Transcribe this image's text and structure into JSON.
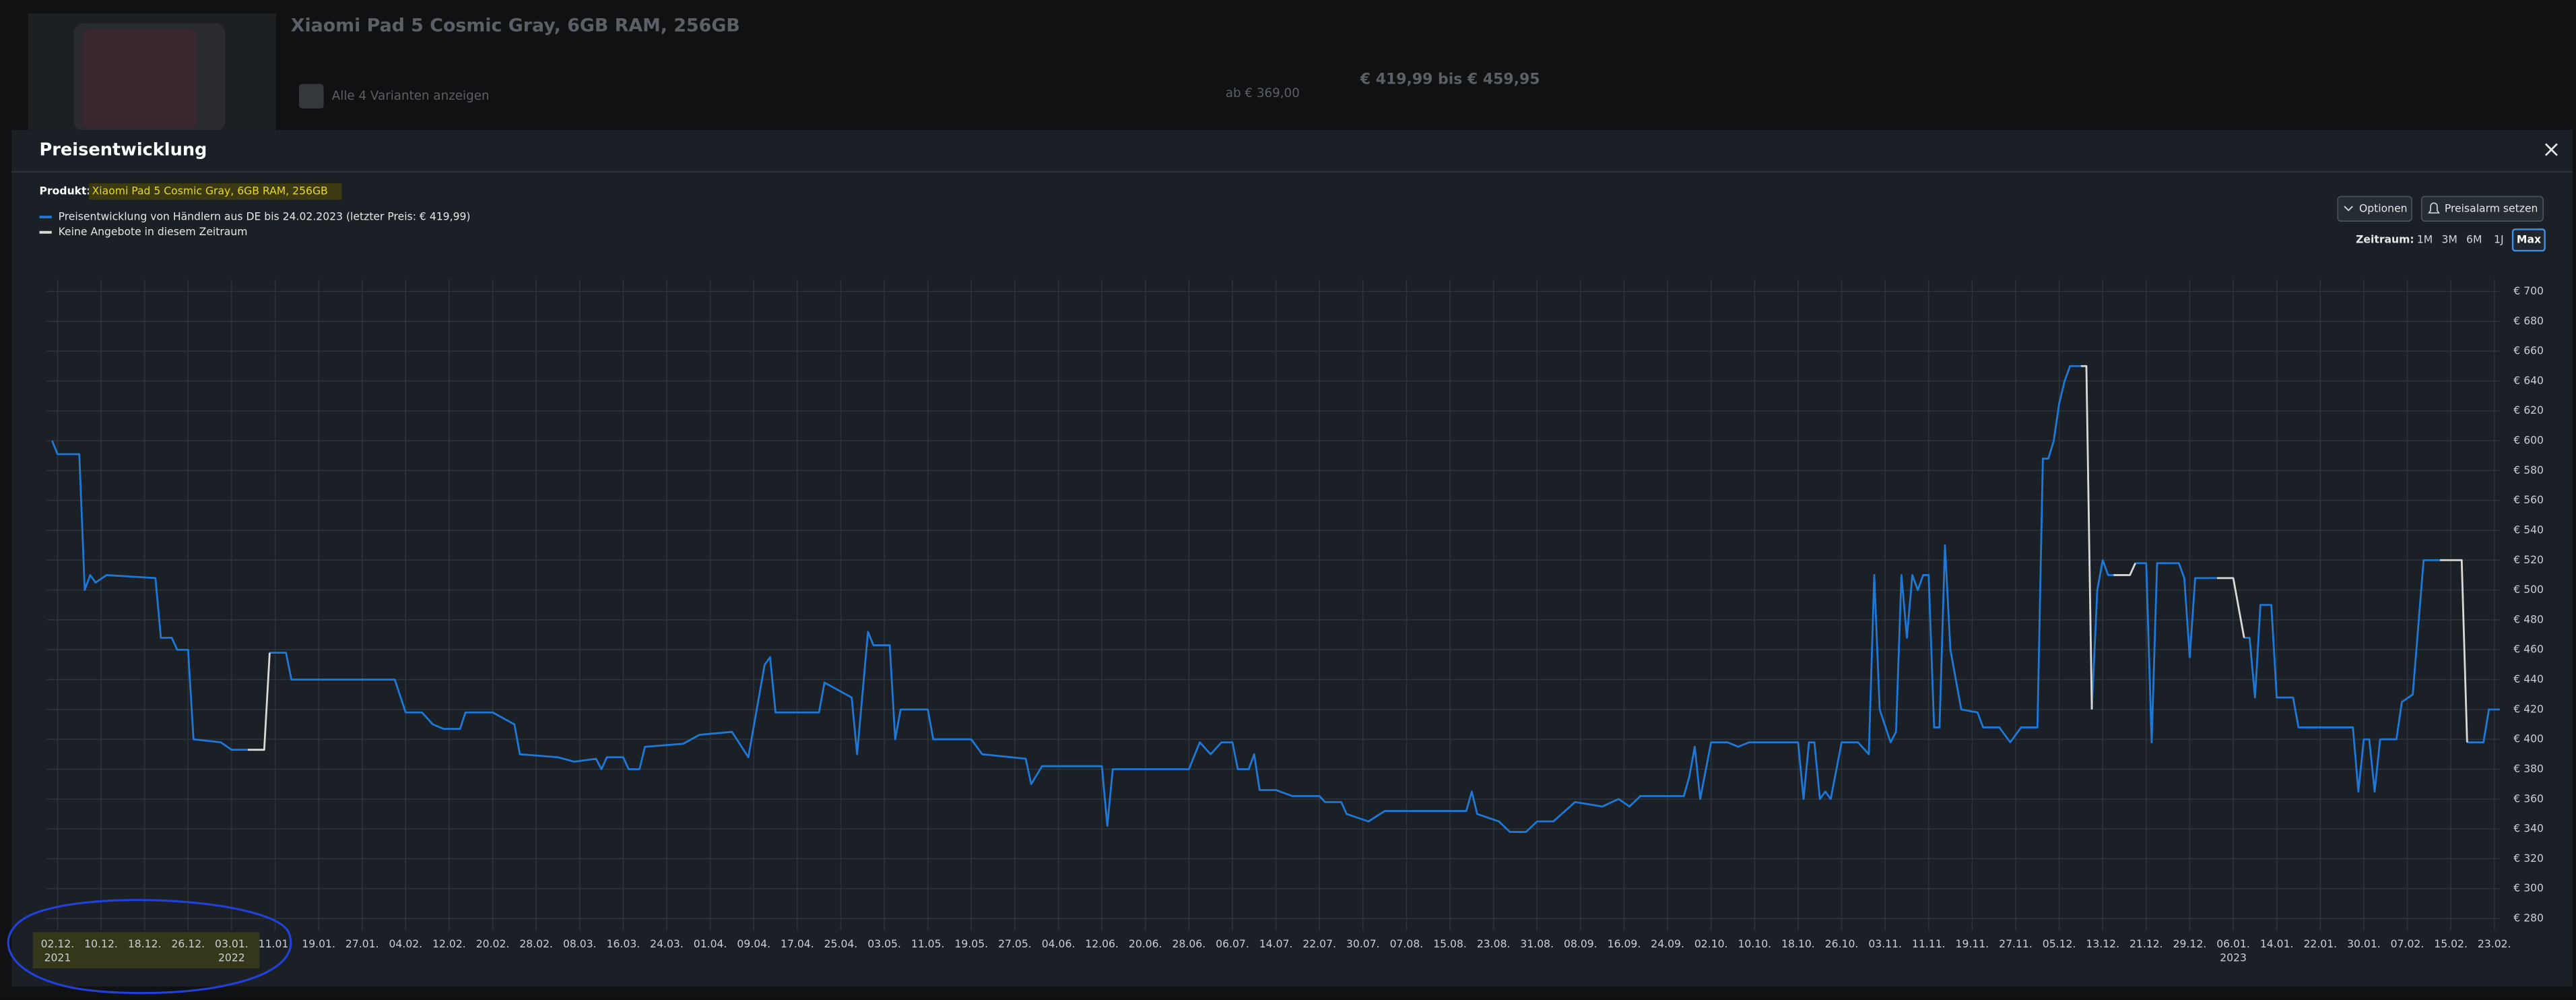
{
  "background_page": {
    "product_title": "Xiaomi Pad 5 Cosmic Gray, 6GB RAM, 256GB",
    "variants_link": "Alle 4 Varianten anzeigen",
    "price_from": "ab € 369,00",
    "price_range": "€ 419,99 bis € 459,95"
  },
  "modal": {
    "title": "Preisentwicklung",
    "product_label": "Produkt:",
    "product_name": "Xiaomi Pad 5 Cosmic Gray, 6GB RAM, 256GB",
    "options_button": "Optionen",
    "alarm_button": "Preisalarm setzen",
    "range_label": "Zeitraum:",
    "range_options": [
      "1M",
      "3M",
      "6M",
      "1J",
      "Max"
    ]
  },
  "chart_data": {
    "type": "line",
    "xlim": [
      "2021-11-30",
      "2023-02-24"
    ],
    "ylim": [
      272,
      708
    ],
    "grid": true,
    "yticks": [
      {
        "value": 280,
        "label": "€ 280"
      },
      {
        "value": 300,
        "label": "€ 300"
      },
      {
        "value": 320,
        "label": "€ 320"
      },
      {
        "value": 340,
        "label": "€ 340"
      },
      {
        "value": 360,
        "label": "€ 360"
      },
      {
        "value": 380,
        "label": "€ 380"
      },
      {
        "value": 400,
        "label": "€ 400"
      },
      {
        "value": 420,
        "label": "€ 420"
      },
      {
        "value": 440,
        "label": "€ 440"
      },
      {
        "value": 460,
        "label": "€ 460"
      },
      {
        "value": 480,
        "label": "€ 480"
      },
      {
        "value": 500,
        "label": "€ 500"
      },
      {
        "value": 520,
        "label": "€ 520"
      },
      {
        "value": 540,
        "label": "€ 540"
      },
      {
        "value": 560,
        "label": "€ 560"
      },
      {
        "value": 580,
        "label": "€ 580"
      },
      {
        "value": 600,
        "label": "€ 600"
      },
      {
        "value": 620,
        "label": "€ 620"
      },
      {
        "value": 640,
        "label": "€ 640"
      },
      {
        "value": 660,
        "label": "€ 660"
      },
      {
        "value": 680,
        "label": "€ 680"
      },
      {
        "value": 700,
        "label": "€ 700"
      }
    ],
    "xticks": [
      {
        "value": "2021-12-02",
        "label": "02.12."
      },
      {
        "value": "2021-12-10",
        "label": "10.12."
      },
      {
        "value": "2021-12-18",
        "label": "18.12."
      },
      {
        "value": "2021-12-26",
        "label": "26.12."
      },
      {
        "value": "2022-01-03",
        "label": "03.01."
      },
      {
        "value": "2022-01-11",
        "label": "11.01."
      },
      {
        "value": "2022-01-19",
        "label": "19.01."
      },
      {
        "value": "2022-01-27",
        "label": "27.01."
      },
      {
        "value": "2022-02-04",
        "label": "04.02."
      },
      {
        "value": "2022-02-12",
        "label": "12.02."
      },
      {
        "value": "2022-02-20",
        "label": "20.02."
      },
      {
        "value": "2022-02-28",
        "label": "28.02."
      },
      {
        "value": "2022-03-08",
        "label": "08.03."
      },
      {
        "value": "2022-03-16",
        "label": "16.03."
      },
      {
        "value": "2022-03-24",
        "label": "24.03."
      },
      {
        "value": "2022-04-01",
        "label": "01.04."
      },
      {
        "value": "2022-04-09",
        "label": "09.04."
      },
      {
        "value": "2022-04-17",
        "label": "17.04."
      },
      {
        "value": "2022-04-25",
        "label": "25.04."
      },
      {
        "value": "2022-05-03",
        "label": "03.05."
      },
      {
        "value": "2022-05-11",
        "label": "11.05."
      },
      {
        "value": "2022-05-19",
        "label": "19.05."
      },
      {
        "value": "2022-05-27",
        "label": "27.05."
      },
      {
        "value": "2022-06-04",
        "label": "04.06."
      },
      {
        "value": "2022-06-12",
        "label": "12.06."
      },
      {
        "value": "2022-06-20",
        "label": "20.06."
      },
      {
        "value": "2022-06-28",
        "label": "28.06."
      },
      {
        "value": "2022-07-06",
        "label": "06.07."
      },
      {
        "value": "2022-07-14",
        "label": "14.07."
      },
      {
        "value": "2022-07-22",
        "label": "22.07."
      },
      {
        "value": "2022-07-30",
        "label": "30.07."
      },
      {
        "value": "2022-08-07",
        "label": "07.08."
      },
      {
        "value": "2022-08-15",
        "label": "15.08."
      },
      {
        "value": "2022-08-23",
        "label": "23.08."
      },
      {
        "value": "2022-08-31",
        "label": "31.08."
      },
      {
        "value": "2022-09-08",
        "label": "08.09."
      },
      {
        "value": "2022-09-16",
        "label": "16.09."
      },
      {
        "value": "2022-09-24",
        "label": "24.09."
      },
      {
        "value": "2022-10-02",
        "label": "02.10."
      },
      {
        "value": "2022-10-10",
        "label": "10.10."
      },
      {
        "value": "2022-10-18",
        "label": "18.10."
      },
      {
        "value": "2022-10-26",
        "label": "26.10."
      },
      {
        "value": "2022-11-03",
        "label": "03.11."
      },
      {
        "value": "2022-11-11",
        "label": "11.11."
      },
      {
        "value": "2022-11-19",
        "label": "19.11."
      },
      {
        "value": "2022-11-27",
        "label": "27.11."
      },
      {
        "value": "2022-12-05",
        "label": "05.12."
      },
      {
        "value": "2022-12-13",
        "label": "13.12."
      },
      {
        "value": "2022-12-21",
        "label": "21.12."
      },
      {
        "value": "2022-12-29",
        "label": "29.12."
      },
      {
        "value": "2023-01-06",
        "label": "06.01."
      },
      {
        "value": "2023-01-14",
        "label": "14.01."
      },
      {
        "value": "2023-01-22",
        "label": "22.01."
      },
      {
        "value": "2023-01-30",
        "label": "30.01."
      },
      {
        "value": "2023-02-07",
        "label": "07.02."
      },
      {
        "value": "2023-02-15",
        "label": "15.02."
      },
      {
        "value": "2023-02-23",
        "label": "23.02."
      }
    ],
    "year_labels": [
      {
        "value": "2021-12-02",
        "label": "2021"
      },
      {
        "value": "2022-01-03",
        "label": "2022"
      },
      {
        "value": "2023-01-06",
        "label": "2023"
      }
    ],
    "series": [
      {
        "name": "Preisentwicklung von Händlern aus DE bis 24.02.2023 (letzter Preis: € 419,99)",
        "color": "#1f78d6",
        "x": [
          "2021-12-01",
          "2021-12-02",
          "2021-12-06",
          "2021-12-07",
          "2021-12-08",
          "2021-12-09",
          "2021-12-11",
          "2021-12-20",
          "2021-12-21",
          "2021-12-23",
          "2021-12-24",
          "2021-12-26",
          "2021-12-27",
          "2022-01-01",
          "2022-01-03",
          "2022-01-06",
          "2022-01-09",
          "2022-01-10",
          "2022-01-13",
          "2022-01-14",
          "2022-02-02",
          "2022-02-04",
          "2022-02-07",
          "2022-02-09",
          "2022-02-11",
          "2022-02-14",
          "2022-02-15",
          "2022-02-20",
          "2022-02-24",
          "2022-02-25",
          "2022-03-04",
          "2022-03-07",
          "2022-03-11",
          "2022-03-12",
          "2022-03-13",
          "2022-03-16",
          "2022-03-17",
          "2022-03-19",
          "2022-03-20",
          "2022-03-27",
          "2022-03-30",
          "2022-04-05",
          "2022-04-08",
          "2022-04-11",
          "2022-04-12",
          "2022-04-13",
          "2022-04-21",
          "2022-04-22",
          "2022-04-27",
          "2022-04-28",
          "2022-04-30",
          "2022-05-01",
          "2022-05-04",
          "2022-05-05",
          "2022-05-06",
          "2022-05-11",
          "2022-05-12",
          "2022-05-19",
          "2022-05-21",
          "2022-05-29",
          "2022-05-30",
          "2022-06-01",
          "2022-06-12",
          "2022-06-13",
          "2022-06-14",
          "2022-06-28",
          "2022-06-30",
          "2022-07-02",
          "2022-07-04",
          "2022-07-06",
          "2022-07-07",
          "2022-07-09",
          "2022-07-10",
          "2022-07-11",
          "2022-07-14",
          "2022-07-17",
          "2022-07-22",
          "2022-07-23",
          "2022-07-26",
          "2022-07-27",
          "2022-07-31",
          "2022-08-03",
          "2022-08-18",
          "2022-08-19",
          "2022-08-20",
          "2022-08-24",
          "2022-08-26",
          "2022-08-29",
          "2022-08-31",
          "2022-09-03",
          "2022-09-07",
          "2022-09-12",
          "2022-09-15",
          "2022-09-17",
          "2022-09-19",
          "2022-09-27",
          "2022-09-28",
          "2022-09-29",
          "2022-09-30",
          "2022-10-02",
          "2022-10-05",
          "2022-10-07",
          "2022-10-09",
          "2022-10-18",
          "2022-10-19",
          "2022-10-20",
          "2022-10-21",
          "2022-10-22",
          "2022-10-23",
          "2022-10-24",
          "2022-10-26",
          "2022-10-29",
          "2022-10-31",
          "2022-11-01",
          "2022-11-02",
          "2022-11-04",
          "2022-11-05",
          "2022-11-06",
          "2022-11-07",
          "2022-11-08",
          "2022-11-09",
          "2022-11-10",
          "2022-11-11",
          "2022-11-12",
          "2022-11-13",
          "2022-11-14",
          "2022-11-15",
          "2022-11-17",
          "2022-11-20",
          "2022-11-21",
          "2022-11-24",
          "2022-11-26",
          "2022-11-28",
          "2022-12-01",
          "2022-12-02",
          "2022-12-03",
          "2022-12-04",
          "2022-12-05",
          "2022-12-06",
          "2022-12-07",
          "2022-12-09",
          "2022-12-10",
          "2022-12-11",
          "2022-12-12",
          "2022-12-13",
          "2022-12-14",
          "2022-12-15",
          "2022-12-18",
          "2022-12-19",
          "2022-12-21",
          "2022-12-22",
          "2022-12-23",
          "2022-12-27",
          "2022-12-28",
          "2022-12-29",
          "2022-12-30",
          "2023-01-03",
          "2023-01-06",
          "2023-01-08",
          "2023-01-09",
          "2023-01-10",
          "2023-01-11",
          "2023-01-13",
          "2023-01-14",
          "2023-01-17",
          "2023-01-18",
          "2023-01-28",
          "2023-01-29",
          "2023-01-30",
          "2023-01-31",
          "2023-02-01",
          "2023-02-02",
          "2023-02-05",
          "2023-02-06",
          "2023-02-08",
          "2023-02-10",
          "2023-02-13",
          "2023-02-17",
          "2023-02-18",
          "2023-02-21",
          "2023-02-22",
          "2023-02-24"
        ],
        "values": [
          600,
          591,
          591,
          500,
          510,
          505,
          510,
          508,
          468,
          468,
          460,
          460,
          400,
          398,
          393,
          393,
          null,
          458,
          458,
          440,
          440,
          418,
          418,
          410,
          407,
          407,
          418,
          418,
          410,
          390,
          388,
          385,
          387,
          380,
          388,
          388,
          380,
          380,
          395,
          397,
          403,
          405,
          388,
          450,
          455,
          418,
          418,
          438,
          428,
          390,
          472,
          463,
          463,
          400,
          420,
          420,
          400,
          400,
          390,
          387,
          370,
          382,
          382,
          342,
          380,
          380,
          398,
          390,
          398,
          398,
          380,
          380,
          390,
          366,
          366,
          362,
          362,
          358,
          358,
          350,
          345,
          352,
          352,
          365,
          350,
          345,
          338,
          338,
          345,
          345,
          358,
          355,
          360,
          355,
          362,
          362,
          375,
          395,
          360,
          398,
          398,
          395,
          398,
          398,
          360,
          398,
          398,
          360,
          365,
          360,
          398,
          398,
          390,
          510,
          420,
          398,
          405,
          510,
          468,
          510,
          500,
          510,
          510,
          408,
          408,
          530,
          460,
          420,
          418,
          408,
          408,
          398,
          408,
          408,
          588,
          588,
          600,
          625,
          640,
          650,
          650,
          null,
          420,
          500,
          520,
          510,
          510,
          null,
          518,
          518,
          398,
          518,
          518,
          508,
          455,
          508,
          508,
          null,
          468,
          468,
          428,
          490,
          490,
          428,
          428,
          408,
          408,
          365,
          400,
          400,
          365,
          400,
          400,
          425,
          430,
          520,
          520,
          null,
          398,
          398,
          420,
          420
        ]
      },
      {
        "name": "Keine Angebote in diesem Zeitraum",
        "color": "#d9d9d9",
        "x": [
          "2022-01-06",
          "2022-01-09",
          "2022-01-10",
          "2022-01-11",
          "2022-12-09",
          "2022-12-10",
          "2022-12-11",
          "2022-12-12",
          "2022-12-15",
          "2022-12-18",
          "2022-12-19",
          "2022-12-20",
          "2023-01-03",
          "2023-01-06",
          "2023-01-08",
          "2023-01-09",
          "2023-02-13",
          "2023-02-17",
          "2023-02-18"
        ],
        "values": [
          393,
          393,
          458,
          null,
          650,
          650,
          420,
          null,
          510,
          510,
          518,
          null,
          508,
          508,
          468,
          null,
          520,
          520,
          398
        ]
      }
    ]
  }
}
